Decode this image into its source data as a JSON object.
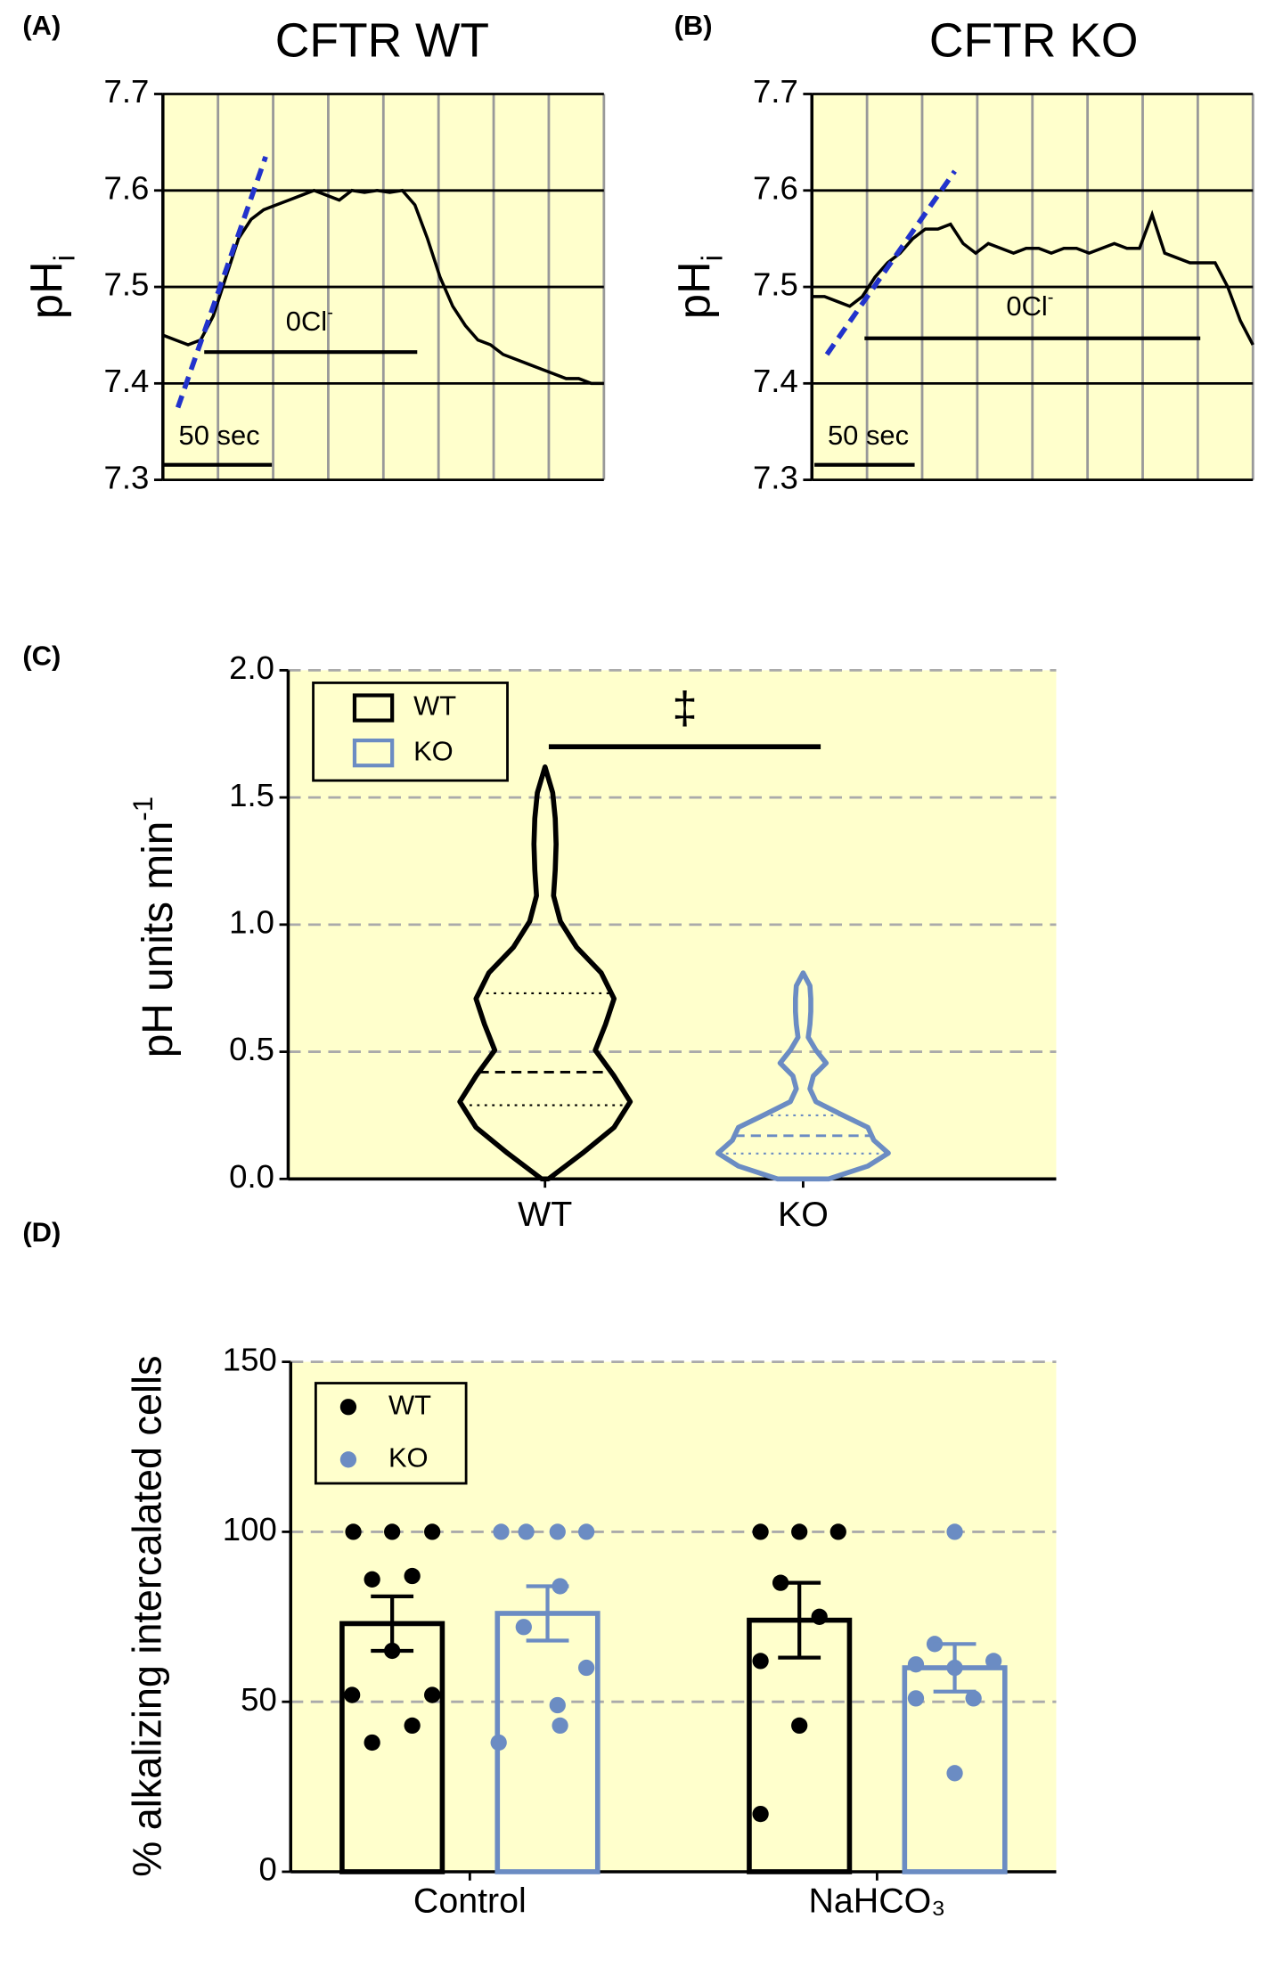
{
  "chart_data": [
    {
      "type": "line",
      "panel": "(A)",
      "title": "CFTR WT",
      "y_label": "pH",
      "y_label_sub": "i",
      "annotation": "0Cl",
      "annotation_sup": "-",
      "scale_label": "50 sec",
      "ylim": [
        7.3,
        7.7
      ],
      "yticks": [
        7.3,
        7.4,
        7.5,
        7.6,
        7.7
      ],
      "values": [
        7.45,
        7.445,
        7.44,
        7.445,
        7.47,
        7.51,
        7.55,
        7.57,
        7.58,
        7.585,
        7.59,
        7.595,
        7.6,
        7.595,
        7.59,
        7.6,
        7.598,
        7.6,
        7.598,
        7.6,
        7.585,
        7.55,
        7.51,
        7.48,
        7.46,
        7.445,
        7.44,
        7.43,
        7.425,
        7.42,
        7.415,
        7.41,
        7.405,
        7.405,
        7.4,
        7.4
      ],
      "color": "#000000",
      "fit_line": [
        7.375,
        7.635
      ],
      "fit_color": "#2233cc"
    },
    {
      "type": "line",
      "panel": "(B)",
      "title": "CFTR KO",
      "y_label": "pH",
      "y_label_sub": "i",
      "annotation": "0Cl",
      "annotation_sup": "-",
      "scale_label": "50 sec",
      "ylim": [
        7.3,
        7.7
      ],
      "yticks": [
        7.3,
        7.4,
        7.5,
        7.6,
        7.7
      ],
      "values": [
        7.49,
        7.49,
        7.485,
        7.48,
        7.49,
        7.51,
        7.525,
        7.535,
        7.55,
        7.56,
        7.56,
        7.565,
        7.545,
        7.535,
        7.545,
        7.54,
        7.535,
        7.54,
        7.54,
        7.535,
        7.54,
        7.54,
        7.535,
        7.54,
        7.545,
        7.54,
        7.54,
        7.575,
        7.535,
        7.53,
        7.525,
        7.525,
        7.525,
        7.5,
        7.465,
        7.44
      ],
      "color": "#000000",
      "fit_line": [
        7.43,
        7.62
      ],
      "fit_color": "#2233cc"
    },
    {
      "type": "violin",
      "panel": "(C)",
      "y_label": "pH units min",
      "y_label_sup": "-1",
      "annotation": "‡",
      "categories": [
        "WT",
        "KO"
      ],
      "ylim": [
        0,
        2
      ],
      "yticks": [
        {
          "value": 0,
          "label": "0.0"
        },
        0.5,
        {
          "value": 1,
          "label": "1.0"
        },
        1.5,
        {
          "value": 2,
          "label": "2.0"
        }
      ],
      "grid": true,
      "series": [
        {
          "name": "WT",
          "color": "#000000",
          "min": 0,
          "q1": 0.29,
          "median": 0.42,
          "q3": 0.73,
          "max": 1.62,
          "density": [
            0.04,
            0.44,
            0.81,
            1,
            0.81,
            0.59,
            0.71,
            0.81,
            0.66,
            0.37,
            0.18,
            0.1,
            0.12,
            0.13,
            0.12,
            0.09,
            0
          ]
        },
        {
          "name": "KO",
          "color": "#6b8cc3",
          "min": 0,
          "q1": 0.1,
          "median": 0.17,
          "q3": 0.25,
          "max": 0.81,
          "density": [
            0.3,
            0.76,
            1,
            0.83,
            0.76,
            0.45,
            0.15,
            0.08,
            0.12,
            0.27,
            0.15,
            0.06,
            0.08,
            0.09,
            0.09,
            0.08,
            0
          ]
        }
      ]
    },
    {
      "type": "bar",
      "panel": "(D)",
      "y_label": "% alkalizing intercalated cells",
      "categories": [
        "Control",
        "NaHCO₃"
      ],
      "ylim": [
        0,
        150
      ],
      "yticks": [
        0,
        50,
        100,
        150
      ],
      "grid": true,
      "series": [
        {
          "name": "WT",
          "color": "#000000",
          "values": [
            73,
            74
          ],
          "errors": [
            8,
            11
          ],
          "points": [
            [
              100,
              100,
              100,
              86,
              87,
              65,
              52,
              52,
              38,
              43
            ],
            [
              100,
              100,
              100,
              85,
              75,
              62,
              43,
              17
            ]
          ]
        },
        {
          "name": "KO",
          "color": "#6b8cc3",
          "values": [
            76,
            60
          ],
          "errors": [
            8,
            7
          ],
          "points": [
            [
              100,
              100,
              100,
              100,
              84,
              72,
              60,
              49,
              38,
              43
            ],
            [
              100,
              67,
              62,
              61,
              60,
              51,
              51,
              29
            ]
          ]
        }
      ]
    }
  ]
}
